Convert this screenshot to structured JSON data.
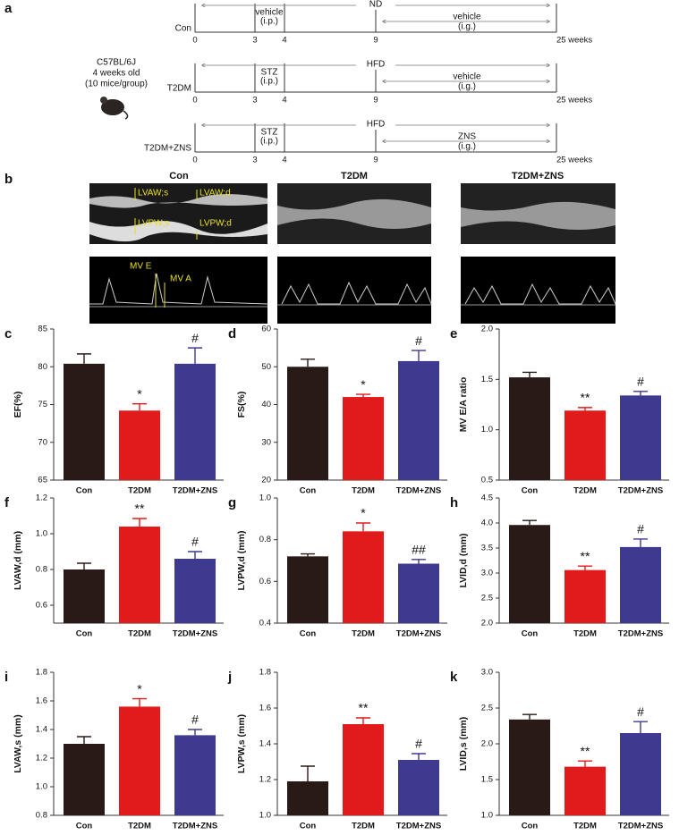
{
  "timeline": {
    "label": "a",
    "strain": [
      "C57BL/6J",
      "4 weeks old",
      "(10 mice/group)"
    ],
    "rows": [
      {
        "group": "Con",
        "diet": "ND",
        "injection": [
          "vehicle",
          "(i.p.)"
        ],
        "gavage": [
          "vehicle",
          "(i.g.)"
        ],
        "ticks": [
          "0",
          "3",
          "4",
          "9",
          "25 weeks"
        ]
      },
      {
        "group": "T2DM",
        "diet": "HFD",
        "injection": [
          "STZ",
          "(i.p.)"
        ],
        "gavage": [
          "vehicle",
          "(i.g.)"
        ],
        "ticks": [
          "0",
          "3",
          "4",
          "9",
          "25 weeks"
        ]
      },
      {
        "group": "T2DM+ZNS",
        "diet": "HFD",
        "injection": [
          "STZ",
          "(i.p.)"
        ],
        "gavage": [
          "ZNS",
          "(i.g.)"
        ],
        "ticks": [
          "0",
          "3",
          "4",
          "9",
          "25 weeks"
        ]
      }
    ]
  },
  "echo": {
    "label": "b",
    "groups": [
      "Con",
      "T2DM",
      "T2DM+ZNS"
    ],
    "mmode_labels": [
      "LVAW;s",
      "LVAW;d",
      "LVPW;s",
      "LVPW;d"
    ],
    "doppler_labels": [
      "MV E",
      "MV A"
    ]
  },
  "chart_data": [
    {
      "type": "bar",
      "panel": "c",
      "ylabel": "EF(%)",
      "categories": [
        "Con",
        "T2DM",
        "T2DM+ZNS"
      ],
      "values": [
        80.4,
        74.2,
        80.4
      ],
      "errors": [
        1.3,
        0.9,
        2.1
      ],
      "annotations": [
        null,
        "*",
        "#"
      ],
      "colors": [
        "#2a1a17",
        "#e11b1b",
        "#3d3a8f"
      ],
      "ylim": [
        65,
        85
      ],
      "yticks": [
        65,
        70,
        75,
        80,
        85
      ]
    },
    {
      "type": "bar",
      "panel": "d",
      "ylabel": "FS(%)",
      "categories": [
        "Con",
        "T2DM",
        "T2DM+ZNS"
      ],
      "values": [
        50.0,
        42.0,
        51.5
      ],
      "errors": [
        2.0,
        0.7,
        2.8
      ],
      "annotations": [
        null,
        "*",
        "#"
      ],
      "colors": [
        "#2a1a17",
        "#e11b1b",
        "#3d3a8f"
      ],
      "ylim": [
        20,
        60
      ],
      "yticks": [
        20,
        30,
        40,
        50,
        60
      ]
    },
    {
      "type": "bar",
      "panel": "e",
      "ylabel": "MV E/A ratio",
      "categories": [
        "Con",
        "T2DM",
        "T2DM+ZNS"
      ],
      "values": [
        1.52,
        1.19,
        1.34
      ],
      "errors": [
        0.05,
        0.03,
        0.04
      ],
      "annotations": [
        null,
        "**",
        "#"
      ],
      "colors": [
        "#2a1a17",
        "#e11b1b",
        "#3d3a8f"
      ],
      "ylim": [
        0.5,
        2.0
      ],
      "yticks": [
        0.5,
        {
          "value": 1,
          "label": "1.0"
        },
        1.5,
        {
          "value": 2,
          "label": "2.0"
        }
      ]
    },
    {
      "type": "bar",
      "panel": "f",
      "ylabel": "LVAW,d (mm)",
      "categories": [
        "Con",
        "T2DM",
        "T2DM+ZNS"
      ],
      "values": [
        0.8,
        1.04,
        0.86
      ],
      "errors": [
        0.035,
        0.045,
        0.04
      ],
      "annotations": [
        null,
        "**",
        "#"
      ],
      "colors": [
        "#2a1a17",
        "#e11b1b",
        "#3d3a8f"
      ],
      "ylim": [
        0.5,
        1.2
      ],
      "yticks": [
        0.6,
        0.8,
        {
          "value": 1,
          "label": "1.0"
        },
        1.2
      ]
    },
    {
      "type": "bar",
      "panel": "g",
      "ylabel": "LVPW,d (mm)",
      "categories": [
        "Con",
        "T2DM",
        "T2DM+ZNS"
      ],
      "values": [
        0.72,
        0.84,
        0.685
      ],
      "errors": [
        0.012,
        0.04,
        0.02
      ],
      "annotations": [
        null,
        "*",
        "##"
      ],
      "colors": [
        "#2a1a17",
        "#e11b1b",
        "#3d3a8f"
      ],
      "ylim": [
        0.4,
        1.0
      ],
      "yticks": [
        0.4,
        0.6,
        0.8,
        {
          "value": 1,
          "label": "1.0"
        }
      ]
    },
    {
      "type": "bar",
      "panel": "h",
      "ylabel": "LVID,d (mm)",
      "categories": [
        "Con",
        "T2DM",
        "T2DM+ZNS"
      ],
      "values": [
        3.96,
        3.06,
        3.52
      ],
      "errors": [
        0.09,
        0.08,
        0.16
      ],
      "annotations": [
        null,
        "**",
        "#"
      ],
      "colors": [
        "#2a1a17",
        "#e11b1b",
        "#3d3a8f"
      ],
      "ylim": [
        2.0,
        4.5
      ],
      "yticks": [
        {
          "value": 2,
          "label": "2.0"
        },
        2.5,
        {
          "value": 3,
          "label": "3.0"
        },
        3.5,
        {
          "value": 4,
          "label": "4.0"
        },
        4.5
      ]
    },
    {
      "type": "bar",
      "panel": "i",
      "ylabel": "LVAW,s (mm)",
      "categories": [
        "Con",
        "T2DM",
        "T2DM+ZNS"
      ],
      "values": [
        1.3,
        1.56,
        1.36
      ],
      "errors": [
        0.05,
        0.055,
        0.04
      ],
      "annotations": [
        null,
        "*",
        "#"
      ],
      "colors": [
        "#2a1a17",
        "#e11b1b",
        "#3d3a8f"
      ],
      "ylim": [
        0.8,
        1.8
      ],
      "yticks": [
        0.8,
        {
          "value": 1,
          "label": "1.0"
        },
        1.2,
        1.4,
        1.6,
        1.8
      ]
    },
    {
      "type": "bar",
      "panel": "j",
      "ylabel": "LVPW,s (mm)",
      "categories": [
        "Con",
        "T2DM",
        "T2DM+ZNS"
      ],
      "values": [
        1.19,
        1.51,
        1.31
      ],
      "errors": [
        0.085,
        0.035,
        0.035
      ],
      "annotations": [
        null,
        "**",
        "#"
      ],
      "colors": [
        "#2a1a17",
        "#e11b1b",
        "#3d3a8f"
      ],
      "ylim": [
        1.0,
        1.8
      ],
      "yticks": [
        {
          "value": 1,
          "label": "1.0"
        },
        1.2,
        1.4,
        1.6,
        1.8
      ]
    },
    {
      "type": "bar",
      "panel": "k",
      "ylabel": "LVID,s (mm)",
      "categories": [
        "Con",
        "T2DM",
        "T2DM+ZNS"
      ],
      "values": [
        2.34,
        1.68,
        2.15
      ],
      "errors": [
        0.07,
        0.08,
        0.16
      ],
      "annotations": [
        null,
        "**",
        "#"
      ],
      "colors": [
        "#2a1a17",
        "#e11b1b",
        "#3d3a8f"
      ],
      "ylim": [
        1.0,
        3.0
      ],
      "yticks": [
        {
          "value": 1,
          "label": "1.0"
        },
        1.5,
        {
          "value": 2,
          "label": "2.0"
        },
        2.5,
        {
          "value": 3,
          "label": "3.0"
        }
      ]
    }
  ]
}
